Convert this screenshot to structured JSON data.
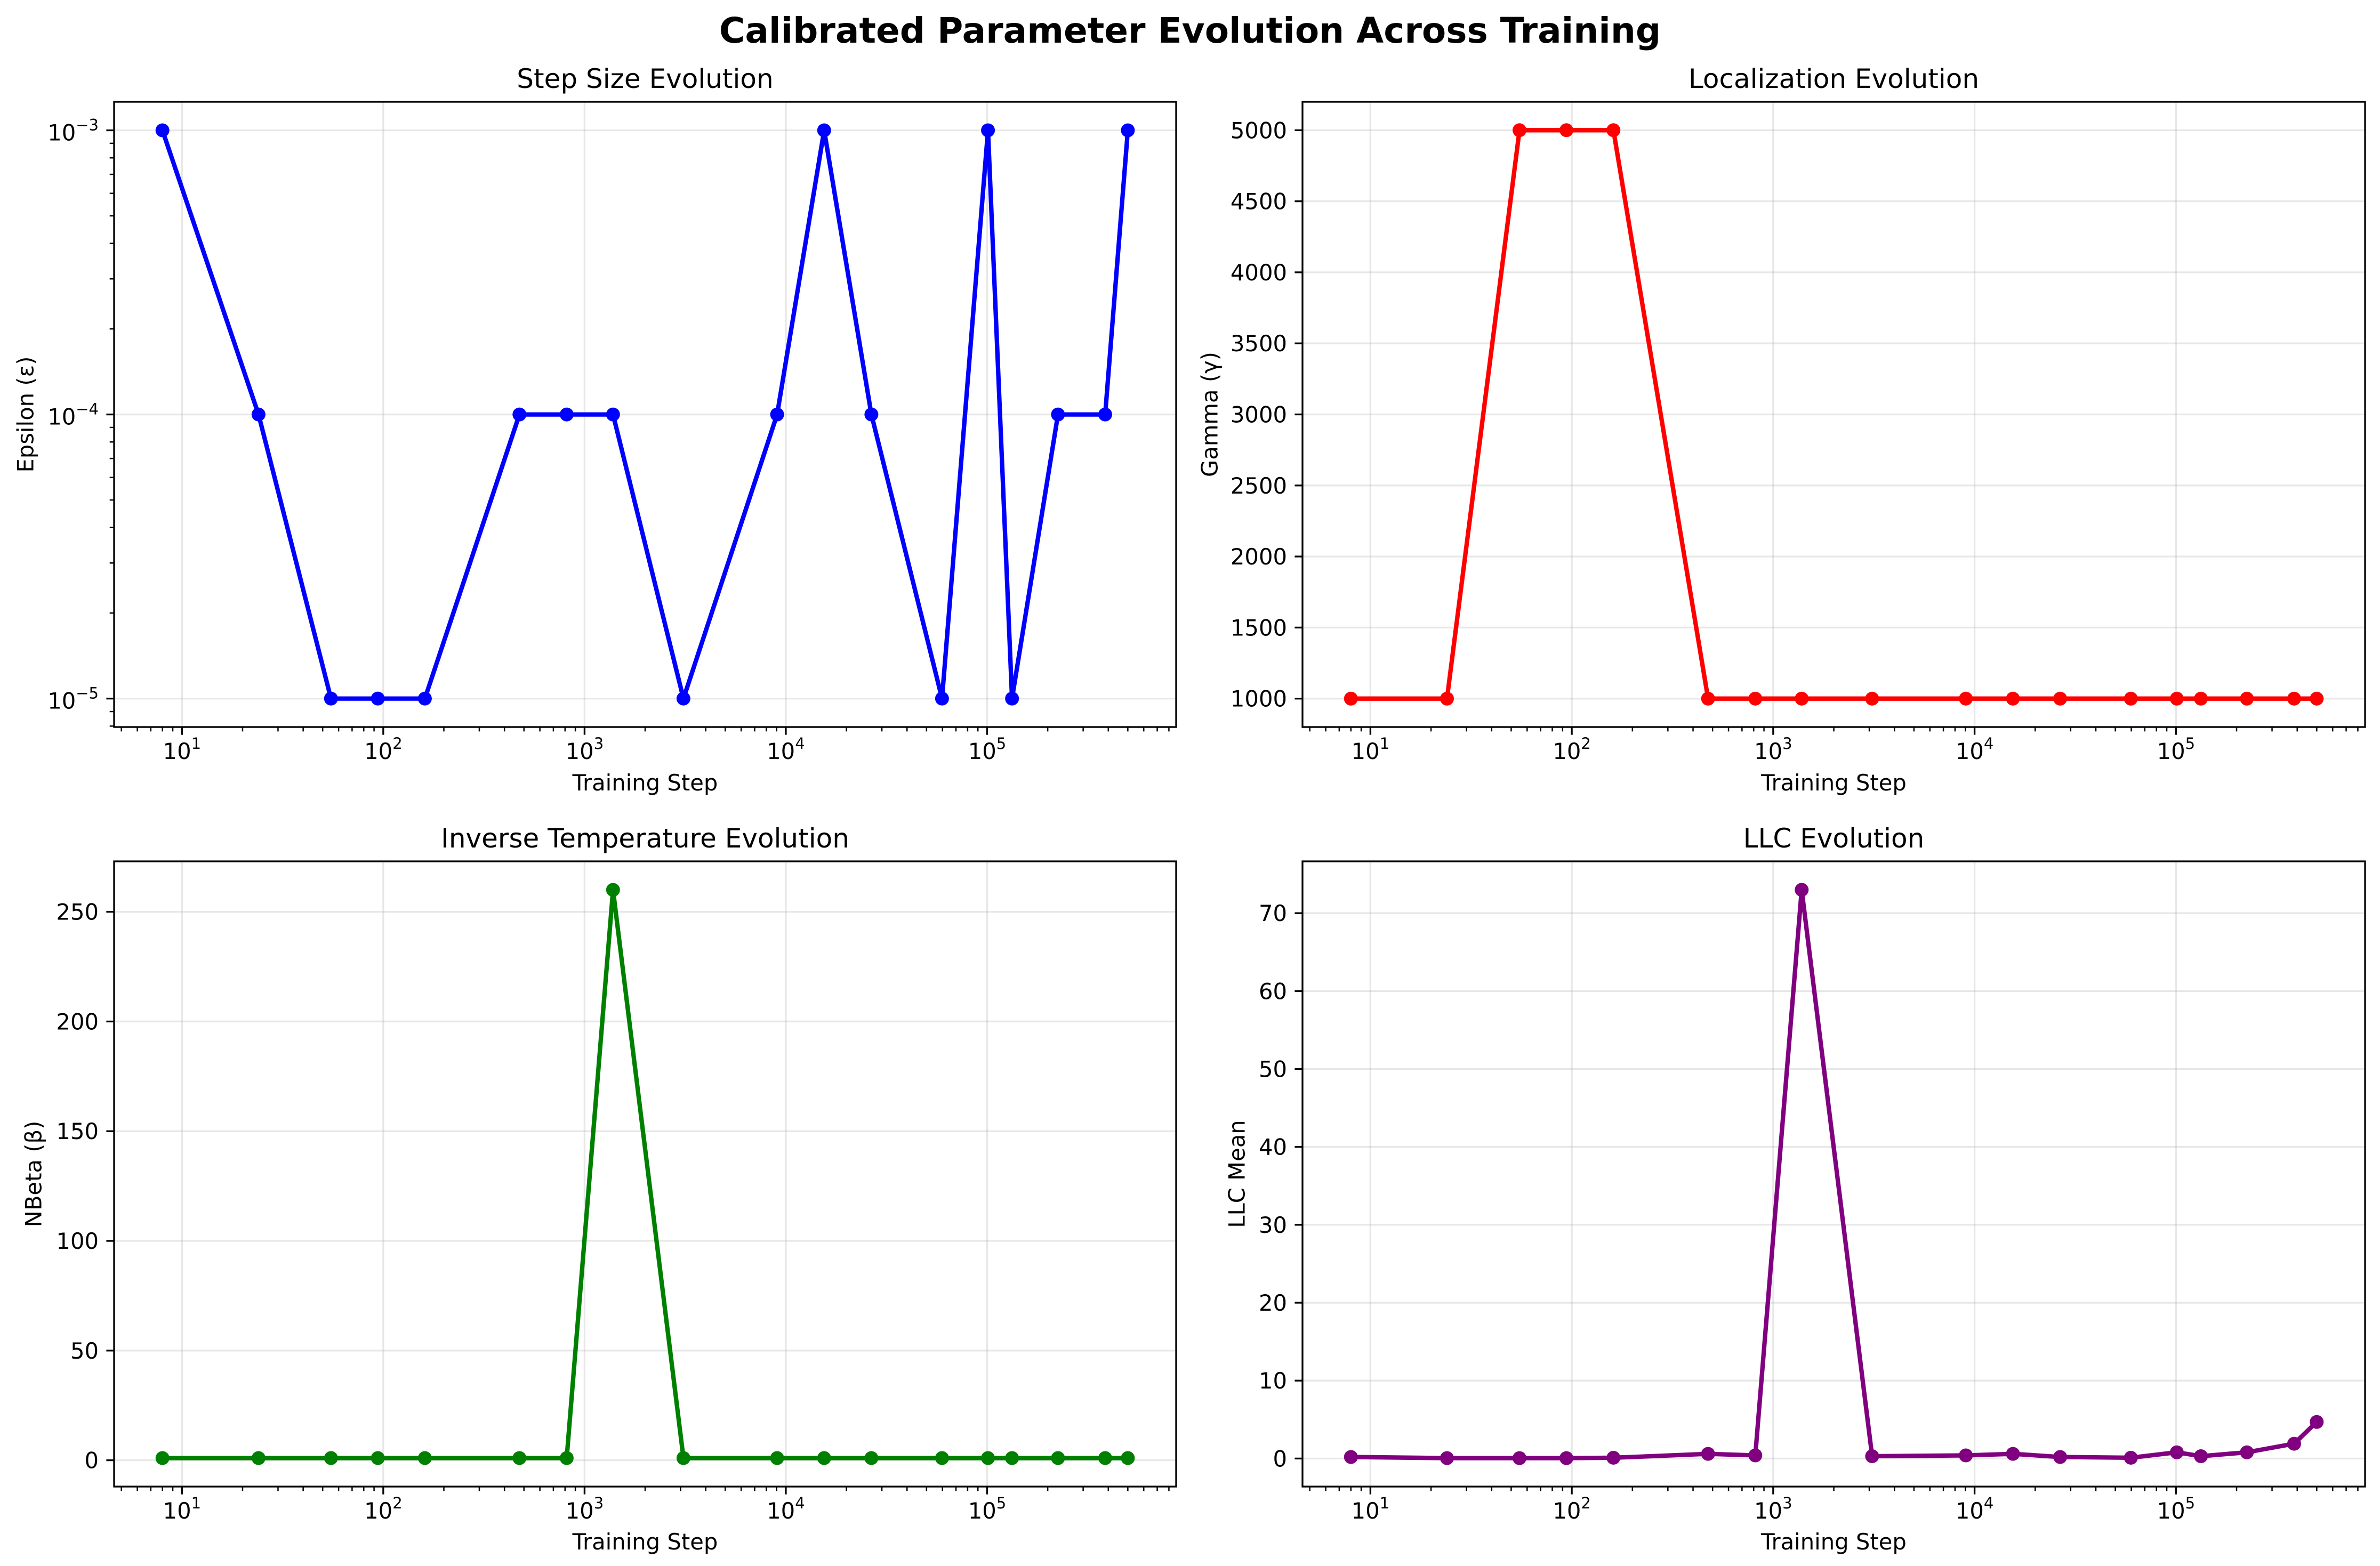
{
  "title": "Calibrated Parameter Evolution Across Training",
  "chart_data": [
    {
      "type": "line",
      "title": "Step Size Evolution",
      "xlabel": "Training Step",
      "ylabel": "Epsilon (ε)",
      "xscale": "log",
      "yscale": "log",
      "grid": true,
      "markers": true,
      "xlim": [
        4.6,
        869000
      ],
      "ylim": [
        7.94e-06,
        0.00126
      ],
      "x": [
        8,
        24,
        55,
        94,
        161,
        475,
        815,
        1385,
        3100,
        9050,
        15500,
        26600,
        59700,
        101000,
        133000,
        225000,
        386000,
        500000
      ],
      "series": [
        {
          "color": "#0000ff",
          "values": [
            0.001,
            0.0001,
            1e-05,
            1e-05,
            1e-05,
            0.0001,
            0.0001,
            0.0001,
            1e-05,
            0.0001,
            0.001,
            0.0001,
            1e-05,
            0.001,
            1e-05,
            0.0001,
            0.0001,
            0.001
          ]
        }
      ],
      "xticks": [
        {
          "value": 10,
          "label": "10",
          "exp": "1"
        },
        {
          "value": 100,
          "label": "10",
          "exp": "2"
        },
        {
          "value": 1000,
          "label": "10",
          "exp": "3"
        },
        {
          "value": 10000,
          "label": "10",
          "exp": "4"
        },
        {
          "value": 100000,
          "label": "10",
          "exp": "5"
        }
      ],
      "yticks": [
        {
          "value": 1e-05,
          "label": "10",
          "exp": "−5"
        },
        {
          "value": 0.0001,
          "label": "10",
          "exp": "−4"
        },
        {
          "value": 0.001,
          "label": "10",
          "exp": "−3"
        }
      ]
    },
    {
      "type": "line",
      "title": "Localization Evolution",
      "xlabel": "Training Step",
      "ylabel": "Gamma (γ)",
      "xscale": "log",
      "yscale": "linear",
      "grid": true,
      "markers": true,
      "xlim": [
        4.6,
        869000
      ],
      "ylim": [
        800,
        5200
      ],
      "x": [
        8,
        24,
        55,
        94,
        161,
        475,
        815,
        1385,
        3100,
        9050,
        15500,
        26600,
        59700,
        101000,
        133000,
        225000,
        386000,
        500000
      ],
      "series": [
        {
          "color": "#ff0000",
          "values": [
            1000,
            1000,
            5000,
            5000,
            5000,
            1000,
            1000,
            1000,
            1000,
            1000,
            1000,
            1000,
            1000,
            1000,
            1000,
            1000,
            1000,
            1000
          ]
        }
      ],
      "xticks": [
        {
          "value": 10,
          "label": "10",
          "exp": "1"
        },
        {
          "value": 100,
          "label": "10",
          "exp": "2"
        },
        {
          "value": 1000,
          "label": "10",
          "exp": "3"
        },
        {
          "value": 10000,
          "label": "10",
          "exp": "4"
        },
        {
          "value": 100000,
          "label": "10",
          "exp": "5"
        }
      ],
      "yticks": [
        {
          "value": 1000,
          "label": "1000"
        },
        {
          "value": 1500,
          "label": "1500"
        },
        {
          "value": 2000,
          "label": "2000"
        },
        {
          "value": 2500,
          "label": "2500"
        },
        {
          "value": 3000,
          "label": "3000"
        },
        {
          "value": 3500,
          "label": "3500"
        },
        {
          "value": 4000,
          "label": "4000"
        },
        {
          "value": 4500,
          "label": "4500"
        },
        {
          "value": 5000,
          "label": "5000"
        }
      ]
    },
    {
      "type": "line",
      "title": "Inverse Temperature Evolution",
      "xlabel": "Training Step",
      "ylabel": "NBeta (β)",
      "xscale": "log",
      "yscale": "linear",
      "grid": true,
      "markers": true,
      "xlim": [
        4.6,
        869000
      ],
      "ylim": [
        -12,
        273
      ],
      "x": [
        8,
        24,
        55,
        94,
        161,
        475,
        815,
        1385,
        3100,
        9050,
        15500,
        26600,
        59700,
        101000,
        133000,
        225000,
        386000,
        500000
      ],
      "series": [
        {
          "color": "#008000",
          "values": [
            1,
            1,
            1,
            1,
            1,
            1,
            1,
            260,
            1,
            1,
            1,
            1,
            1,
            1,
            1,
            1,
            1,
            1
          ]
        }
      ],
      "xticks": [
        {
          "value": 10,
          "label": "10",
          "exp": "1"
        },
        {
          "value": 100,
          "label": "10",
          "exp": "2"
        },
        {
          "value": 1000,
          "label": "10",
          "exp": "3"
        },
        {
          "value": 10000,
          "label": "10",
          "exp": "4"
        },
        {
          "value": 100000,
          "label": "10",
          "exp": "5"
        }
      ],
      "yticks": [
        {
          "value": 0,
          "label": "0"
        },
        {
          "value": 50,
          "label": "50"
        },
        {
          "value": 100,
          "label": "100"
        },
        {
          "value": 150,
          "label": "150"
        },
        {
          "value": 200,
          "label": "200"
        },
        {
          "value": 250,
          "label": "250"
        }
      ]
    },
    {
      "type": "line",
      "title": "LLC Evolution",
      "xlabel": "Training Step",
      "ylabel": "LLC Mean",
      "xscale": "log",
      "yscale": "linear",
      "grid": true,
      "markers": true,
      "xlim": [
        4.6,
        869000
      ],
      "ylim": [
        -3.6,
        76.65
      ],
      "x": [
        8,
        24,
        55,
        94,
        161,
        475,
        815,
        1385,
        3100,
        9050,
        15500,
        26600,
        59700,
        101000,
        133000,
        225000,
        386000,
        500000
      ],
      "series": [
        {
          "color": "#800080",
          "values": [
            0.2,
            0.05,
            0.05,
            0.05,
            0.1,
            0.6,
            0.4,
            73,
            0.3,
            0.4,
            0.6,
            0.2,
            0.1,
            0.8,
            0.3,
            0.8,
            1.9,
            4.7
          ]
        }
      ],
      "xticks": [
        {
          "value": 10,
          "label": "10",
          "exp": "1"
        },
        {
          "value": 100,
          "label": "10",
          "exp": "2"
        },
        {
          "value": 1000,
          "label": "10",
          "exp": "3"
        },
        {
          "value": 10000,
          "label": "10",
          "exp": "4"
        },
        {
          "value": 100000,
          "label": "10",
          "exp": "5"
        }
      ],
      "yticks": [
        {
          "value": 0,
          "label": "0"
        },
        {
          "value": 10,
          "label": "10"
        },
        {
          "value": 20,
          "label": "20"
        },
        {
          "value": 30,
          "label": "30"
        },
        {
          "value": 40,
          "label": "40"
        },
        {
          "value": 50,
          "label": "50"
        },
        {
          "value": 60,
          "label": "60"
        },
        {
          "value": 70,
          "label": "70"
        }
      ]
    }
  ]
}
